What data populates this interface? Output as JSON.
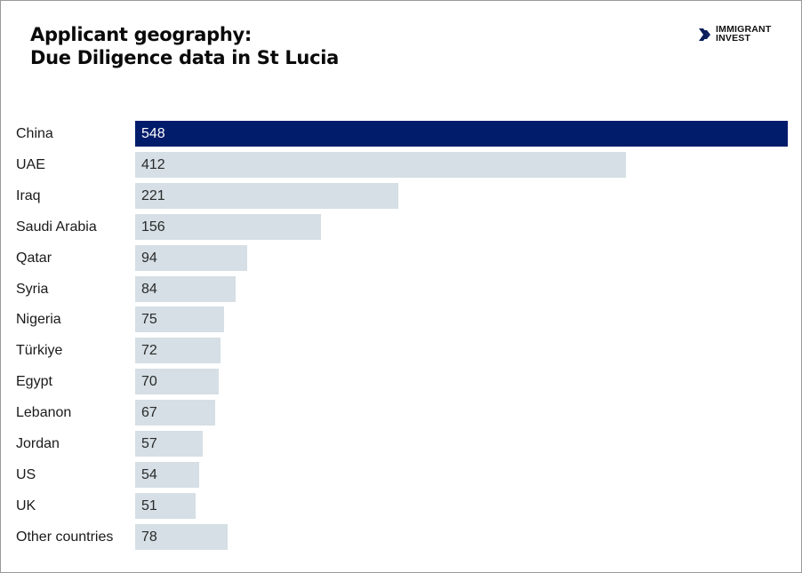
{
  "header": {
    "title_line1": "Applicant geography:",
    "title_line2": "Due Diligence data in St Lucia"
  },
  "logo": {
    "icon": "double-chevron-right-icon",
    "line1": "IMMIGRANT",
    "line2": "INVEST"
  },
  "colors": {
    "highlight_bar": "#001c6b",
    "default_bar": "#d5dfe5",
    "text": "#1a1a1a"
  },
  "chart_data": {
    "type": "bar",
    "orientation": "horizontal",
    "title": "Applicant geography: Due Diligence data in St Lucia",
    "xlabel": "",
    "ylabel": "",
    "categories": [
      "China",
      "UAE",
      "Iraq",
      "Saudi Arabia",
      "Qatar",
      "Syria",
      "Nigeria",
      "Türkiye",
      "Egypt",
      "Lebanon",
      "Jordan",
      "US",
      "UK",
      "Other countries"
    ],
    "values": [
      548,
      412,
      221,
      156,
      94,
      84,
      75,
      72,
      70,
      67,
      57,
      54,
      51,
      78
    ],
    "highlighted": "China",
    "grid": false,
    "legend": null,
    "xlim": [
      0,
      548
    ]
  }
}
